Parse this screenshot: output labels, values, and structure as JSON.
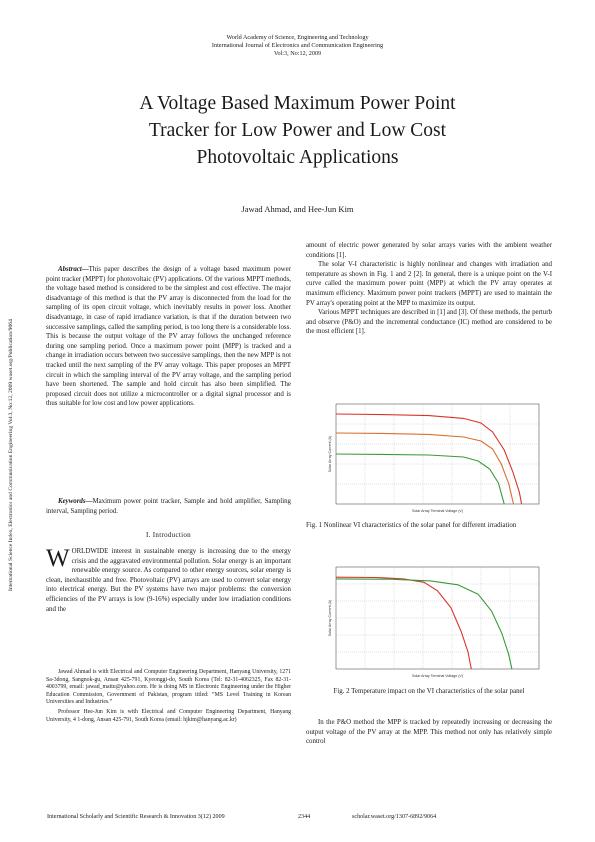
{
  "header": {
    "line1": "World Academy of Science, Engineering and Technology",
    "line2": "International Journal of Electronics and Communication Engineering",
    "line3": "Vol:3, No:12, 2009"
  },
  "title": {
    "line1": "A Voltage Based Maximum Power Point",
    "line2": "Tracker for Low Power and Low Cost",
    "line3": "Photovoltaic Applications"
  },
  "authors": "Jawad Ahmad, and Hee-Jun Kim",
  "sidebar_text": "International Science Index, Electronics and Communication Engineering Vol:3, No:12, 2009 waset.org/Publication/9064",
  "abstract": {
    "label": "Abstract",
    "text": "This paper describes the design of a voltage based maximum power point tracker (MPPT) for photovoltaic (PV) applications. Of the various MPPT methods, the voltage based method is considered to be the simplest and cost effective. The major disadvantage of this method is that the PV array is disconnected from the load for the sampling of its open circuit voltage, which inevitably results in power loss. Another disadvantage, in case of rapid irradiance variation, is that if the duration between two successive samplings, called the sampling period, is too long there is a considerable loss. This is because the output voltage of the PV array follows the unchanged reference during one sampling period. Once a maximum power point (MPP) is tracked and a change in irradiation occurs between two successive samplings, then the new MPP is not tracked until the next sampling of the PV array voltage. This paper proposes an MPPT circuit in which the sampling interval of the PV array voltage, and the sampling period have been shortened. The sample and hold circuit has also been simplified. The proposed circuit does not utilize a microcontroller or a digital signal processor and is thus suitable for low cost and low power applications."
  },
  "keywords": {
    "label": "Keywords",
    "text": "Maximum power point tracker, Sample and hold amplifier, Sampling interval, Sampling period."
  },
  "section1": {
    "heading": "I.   Introduction",
    "dropcap": "W",
    "lead": "ORLDWIDE",
    "text": " interest in sustainable energy is increasing due to the energy crisis and the aggravated environmental pollution. Solar energy is an important renewable energy source. As compared to other energy sources, solar energy is clean, inexhaustible and free. Photovoltaic (PV) arrays are used to convert solar energy into electrical energy. But the PV systems have two major problems: the conversion efficiencies of the PV arrays is low (9-16%) especially under low irradiation conditions and the"
  },
  "footnotes": {
    "author1": "Jawad Ahmad is with Electrical and Computer Engineering Department, Hanyang University, 1271 Sa-3dong, Sangnok-gu, Ansan 425-791, Kyeonggi-do, South Korea (Tel: 82-31-4062325, Fax 82-31-4003799, email: jawad_mattu@yahoo.com. He is doing MS in Electronic Engineering under the Higher Education Commission, Government of Pakistan, program titled: “MS Level Training in Korean Universities and Industries.”",
    "author2": "Professor Hee-Jun Kim is with Electrical and Computer Engineering Department, Hanyang University, 4 1-dong, Ansan 425-791, South Korea (email: hjkim@hanyang.ac.kr)"
  },
  "right_col": {
    "p1": "amount of electric power generated by solar arrays varies with the ambient weather conditions [1].",
    "p2": "The solar V-I characteristic is highly nonlinear and changes with irradiation and temperature as shown in Fig. 1 and 2 [2]. In general, there is a unique point on the V-I curve called the maximum power point (MPP) at which the PV array operates at maximum efficiency. Maximum power point trackers (MPPT) are used to maintain the PV array's operating point at the MPP to maximize its output.",
    "p3": "Various MPPT techniques are described in [1] and [3]. Of these methods, the perturb and observe (P&O) and the incremental conductance (IC) method are considered to be the most efficient [1].",
    "fig1_caption": "Fig. 1 Nonlinear VI characteristics of the solar panel for different irradiation",
    "fig2_caption": "Fig. 2 Temperature impact on the VI characteristics of the solar panel",
    "p4": "In the P&O method the MPP is tracked by repeatedly increasing or decreasing the output voltage of the PV array at the MPP. This method not only has relatively simple control"
  },
  "footer": {
    "left": "International Scholarly and Scientific Research & Innovation 3(12) 2009",
    "page": "2344",
    "right": "scholar.waset.org/1307-6892/9064"
  },
  "colors": {
    "red": "#d9342b",
    "orange": "#d8702c",
    "green": "#3a9a3a"
  },
  "chart_data": [
    {
      "type": "line",
      "title": "",
      "xlabel": "Solar Array Terminal Voltage (V)",
      "ylabel": "Solar Array Current (A)",
      "xlim": [
        0,
        35
      ],
      "ylim": [
        0,
        5
      ],
      "grid": true,
      "series": [
        {
          "points": [
            [
              0,
              4.5
            ],
            [
              8,
              4.47
            ],
            [
              16,
              4.42
            ],
            [
              22,
              4.28
            ],
            [
              25,
              4.05
            ],
            [
              27,
              3.6
            ],
            [
              29,
              2.7
            ],
            [
              30.5,
              1.6
            ],
            [
              31.6,
              0.6
            ],
            [
              32,
              0
            ]
          ]
        },
        {
          "points": [
            [
              0,
              3.55
            ],
            [
              8,
              3.53
            ],
            [
              16,
              3.48
            ],
            [
              22,
              3.35
            ],
            [
              25,
              3.15
            ],
            [
              27,
              2.75
            ],
            [
              28.5,
              2.0
            ],
            [
              29.8,
              1.0
            ],
            [
              30.6,
              0
            ]
          ]
        },
        {
          "points": [
            [
              0,
              2.5
            ],
            [
              8,
              2.48
            ],
            [
              16,
              2.45
            ],
            [
              22,
              2.35
            ],
            [
              24.5,
              2.15
            ],
            [
              26.5,
              1.75
            ],
            [
              28,
              1.05
            ],
            [
              29,
              0
            ]
          ]
        }
      ]
    },
    {
      "type": "line",
      "title": "",
      "xlabel": "Solar Array Terminal Voltage (V)",
      "ylabel": "Solar Array Current (A)",
      "xlim": [
        0,
        30
      ],
      "ylim": [
        0,
        6
      ],
      "grid": true,
      "series": [
        {
          "points": [
            [
              0,
              5.4
            ],
            [
              6,
              5.38
            ],
            [
              10,
              5.3
            ],
            [
              13,
              5.1
            ],
            [
              15,
              4.6
            ],
            [
              17,
              3.6
            ],
            [
              18.5,
              2.2
            ],
            [
              19.5,
              1.0
            ],
            [
              20,
              0
            ]
          ]
        },
        {
          "points": [
            [
              0,
              5.3
            ],
            [
              8,
              5.28
            ],
            [
              14,
              5.18
            ],
            [
              18,
              4.95
            ],
            [
              21,
              4.4
            ],
            [
              23,
              3.4
            ],
            [
              24.5,
              2.1
            ],
            [
              25.5,
              0.9
            ],
            [
              26,
              0
            ]
          ]
        }
      ]
    }
  ]
}
